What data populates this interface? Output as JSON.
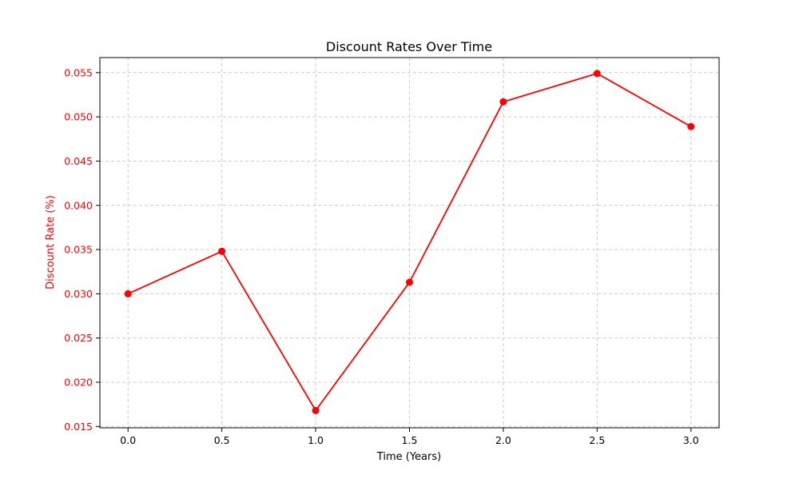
{
  "chart_data": {
    "type": "line",
    "title": "Discount Rates Over Time",
    "xlabel": "Time (Years)",
    "ylabel": "Discount Rate (%)",
    "x": [
      0.0,
      0.5,
      1.0,
      1.5,
      2.0,
      2.5,
      3.0
    ],
    "series": [
      {
        "values": [
          0.03,
          0.0348,
          0.0168,
          0.0313,
          0.0517,
          0.0549,
          0.0489
        ],
        "color": "#ff0000",
        "marker": "circle"
      }
    ],
    "xticks": [
      "0.0",
      "0.5",
      "1.0",
      "1.5",
      "2.0",
      "2.5",
      "3.0"
    ],
    "yticks": [
      "0.015",
      "0.020",
      "0.025",
      "0.030",
      "0.035",
      "0.040",
      "0.045",
      "0.050",
      "0.055"
    ],
    "xlim": [
      -0.15,
      3.15
    ],
    "ylim": [
      0.01485,
      0.0567
    ],
    "grid": true,
    "ylabel_color": "#ff0000",
    "ytick_color": "#ff0000"
  }
}
